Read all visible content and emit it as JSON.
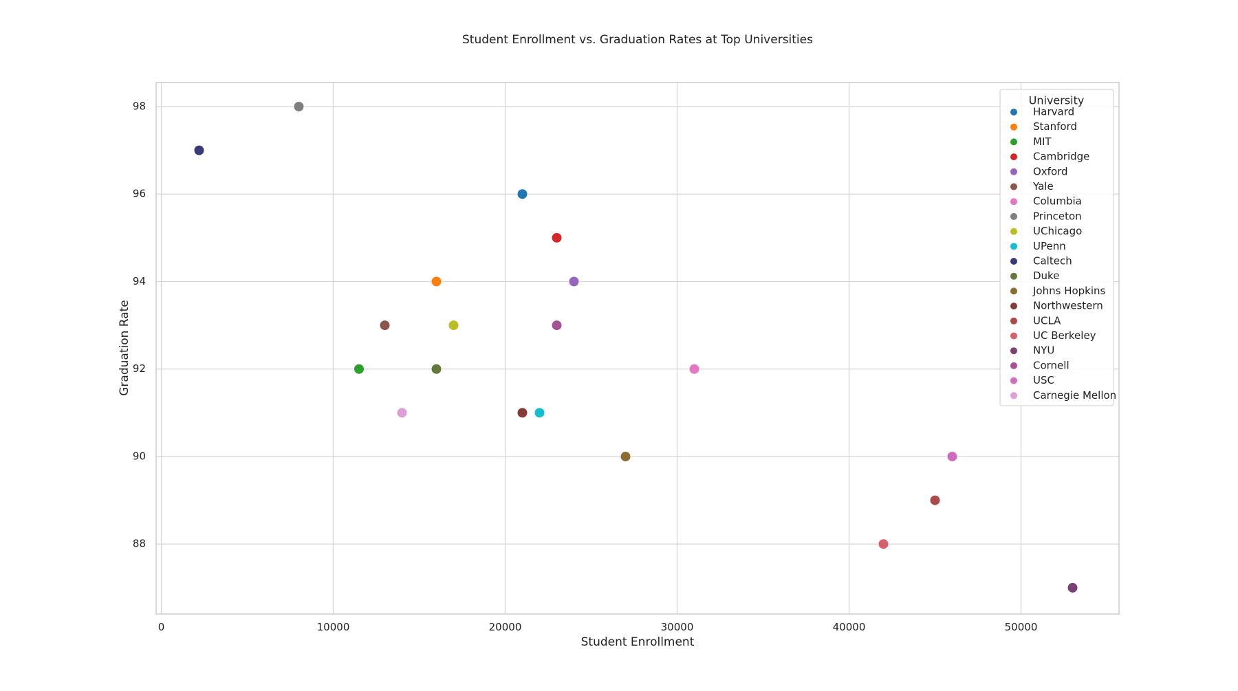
{
  "chart_data": {
    "type": "scatter",
    "title": "Student Enrollment vs. Graduation Rates at Top Universities",
    "xlabel": "Student Enrollment",
    "ylabel": "Graduation Rate",
    "xlim": [
      -300,
      55700
    ],
    "ylim": [
      86.4,
      98.55
    ],
    "xticks": [
      0,
      10000,
      20000,
      30000,
      40000,
      50000
    ],
    "yticks": [
      88,
      90,
      92,
      94,
      96,
      98
    ],
    "grid": true,
    "legend": {
      "title": "University",
      "placement": "top-right"
    },
    "series": [
      {
        "name": "Harvard",
        "color": "#1f77b4",
        "points": [
          [
            21000,
            96
          ]
        ]
      },
      {
        "name": "Stanford",
        "color": "#ff7f0e",
        "points": [
          [
            16000,
            94
          ]
        ]
      },
      {
        "name": "MIT",
        "color": "#2ca02c",
        "points": [
          [
            11500,
            92
          ]
        ]
      },
      {
        "name": "Cambridge",
        "color": "#d62728",
        "points": [
          [
            23000,
            95
          ]
        ]
      },
      {
        "name": "Oxford",
        "color": "#9467bd",
        "points": [
          [
            24000,
            94
          ]
        ]
      },
      {
        "name": "Yale",
        "color": "#8c564b",
        "points": [
          [
            13000,
            93
          ]
        ]
      },
      {
        "name": "Columbia",
        "color": "#e377c2",
        "points": [
          [
            31000,
            92
          ]
        ]
      },
      {
        "name": "Princeton",
        "color": "#7f7f7f",
        "points": [
          [
            8000,
            98
          ]
        ]
      },
      {
        "name": "UChicago",
        "color": "#bcbd22",
        "points": [
          [
            17000,
            93
          ]
        ]
      },
      {
        "name": "UPenn",
        "color": "#17becf",
        "points": [
          [
            22000,
            91
          ]
        ]
      },
      {
        "name": "Caltech",
        "color": "#393b79",
        "points": [
          [
            2200,
            97
          ]
        ]
      },
      {
        "name": "Duke",
        "color": "#637939",
        "points": [
          [
            16000,
            92
          ]
        ]
      },
      {
        "name": "Johns Hopkins",
        "color": "#8c6d31",
        "points": [
          [
            27000,
            90
          ]
        ]
      },
      {
        "name": "Northwestern",
        "color": "#843c39",
        "points": [
          [
            21000,
            91
          ]
        ]
      },
      {
        "name": "UCLA",
        "color": "#ad494a",
        "points": [
          [
            45000,
            89
          ]
        ]
      },
      {
        "name": "UC Berkeley",
        "color": "#d6616b",
        "points": [
          [
            42000,
            88
          ]
        ]
      },
      {
        "name": "NYU",
        "color": "#7b4173",
        "points": [
          [
            53000,
            87
          ]
        ]
      },
      {
        "name": "Cornell",
        "color": "#a55194",
        "points": [
          [
            23000,
            93
          ]
        ]
      },
      {
        "name": "USC",
        "color": "#ce6dbd",
        "points": [
          [
            46000,
            90
          ]
        ]
      },
      {
        "name": "Carnegie Mellon",
        "color": "#de9ed6",
        "points": [
          [
            14000,
            91
          ]
        ]
      }
    ]
  }
}
